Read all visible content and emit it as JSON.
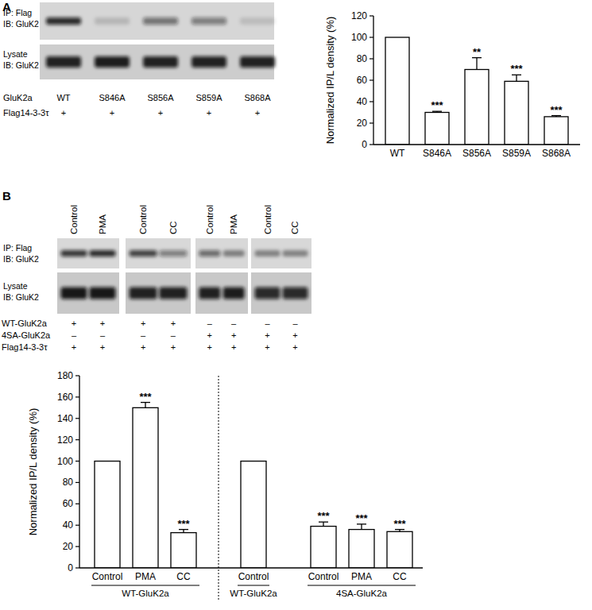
{
  "figure": {
    "panels": [
      {
        "label": "A",
        "blot": {
          "row_labels": [
            [
              "IP: Flag",
              "IB: GluK2"
            ],
            [
              "Lysate",
              "IB: GluK2"
            ]
          ],
          "conditions": [
            {
              "name": "GluK2a",
              "marks": [
                "WT",
                "S846A",
                "S856A",
                "S859A",
                "S868A"
              ]
            },
            {
              "name": "Flag14-3-3τ",
              "marks": [
                "+",
                "+",
                "+",
                "+",
                "+"
              ]
            }
          ]
        }
      },
      {
        "label": "B",
        "blot": {
          "lane_headers": [
            "Control",
            "PMA",
            "Control",
            "CC",
            "Control",
            "PMA",
            "Control",
            "CC"
          ],
          "row_labels": [
            [
              "IP: Flag",
              "IB: GluK2"
            ],
            [
              "Lysate",
              "IB: GluK2"
            ]
          ],
          "conditions": [
            {
              "name": "WT-GluK2a",
              "marks": [
                "+",
                "+",
                "+",
                "+",
                "–",
                "–",
                "–",
                "–"
              ]
            },
            {
              "name": "4SA-GluK2a",
              "marks": [
                "–",
                "–",
                "–",
                "–",
                "+",
                "+",
                "+",
                "+"
              ]
            },
            {
              "name": "Flag14-3-3τ",
              "marks": [
                "+",
                "+",
                "+",
                "+",
                "+",
                "+",
                "+",
                "+"
              ]
            }
          ]
        }
      }
    ]
  },
  "chart_data": [
    {
      "type": "bar",
      "y_label": "Normalized IP/L density (%)",
      "categories": [
        "WT",
        "S846A",
        "S856A",
        "S859A",
        "S868A"
      ],
      "values": [
        100,
        30,
        70,
        59,
        26
      ],
      "errors": [
        null,
        1,
        11,
        6,
        1
      ],
      "annotations": [
        null,
        "***",
        "**",
        "***",
        "***"
      ],
      "color": "#ffffff",
      "ylim": [
        0,
        120
      ],
      "yticks": [
        0,
        20,
        40,
        60,
        80,
        100,
        120
      ],
      "grid": false
    },
    {
      "type": "bar",
      "y_label": "Normalized IP/L density (%)",
      "categories": [
        "Control",
        "PMA",
        "CC",
        "Control",
        "Control",
        "PMA",
        "CC"
      ],
      "values": [
        100,
        150,
        33,
        100,
        39,
        36,
        34
      ],
      "errors": [
        null,
        5,
        3,
        null,
        4,
        5,
        2
      ],
      "annotations": [
        null,
        "***",
        "***",
        null,
        "***",
        "***",
        "***"
      ],
      "groups": [
        {
          "label": "WT-GluK2a",
          "span": 3
        },
        {
          "label": "WT-GluK2a",
          "span": 1
        },
        {
          "label": "4SA-GluK2a",
          "span": 3
        }
      ],
      "color": "#ffffff",
      "ylim": [
        0,
        180
      ],
      "yticks": [
        0,
        20,
        40,
        60,
        80,
        100,
        120,
        140,
        160,
        180
      ],
      "grid": false
    }
  ]
}
